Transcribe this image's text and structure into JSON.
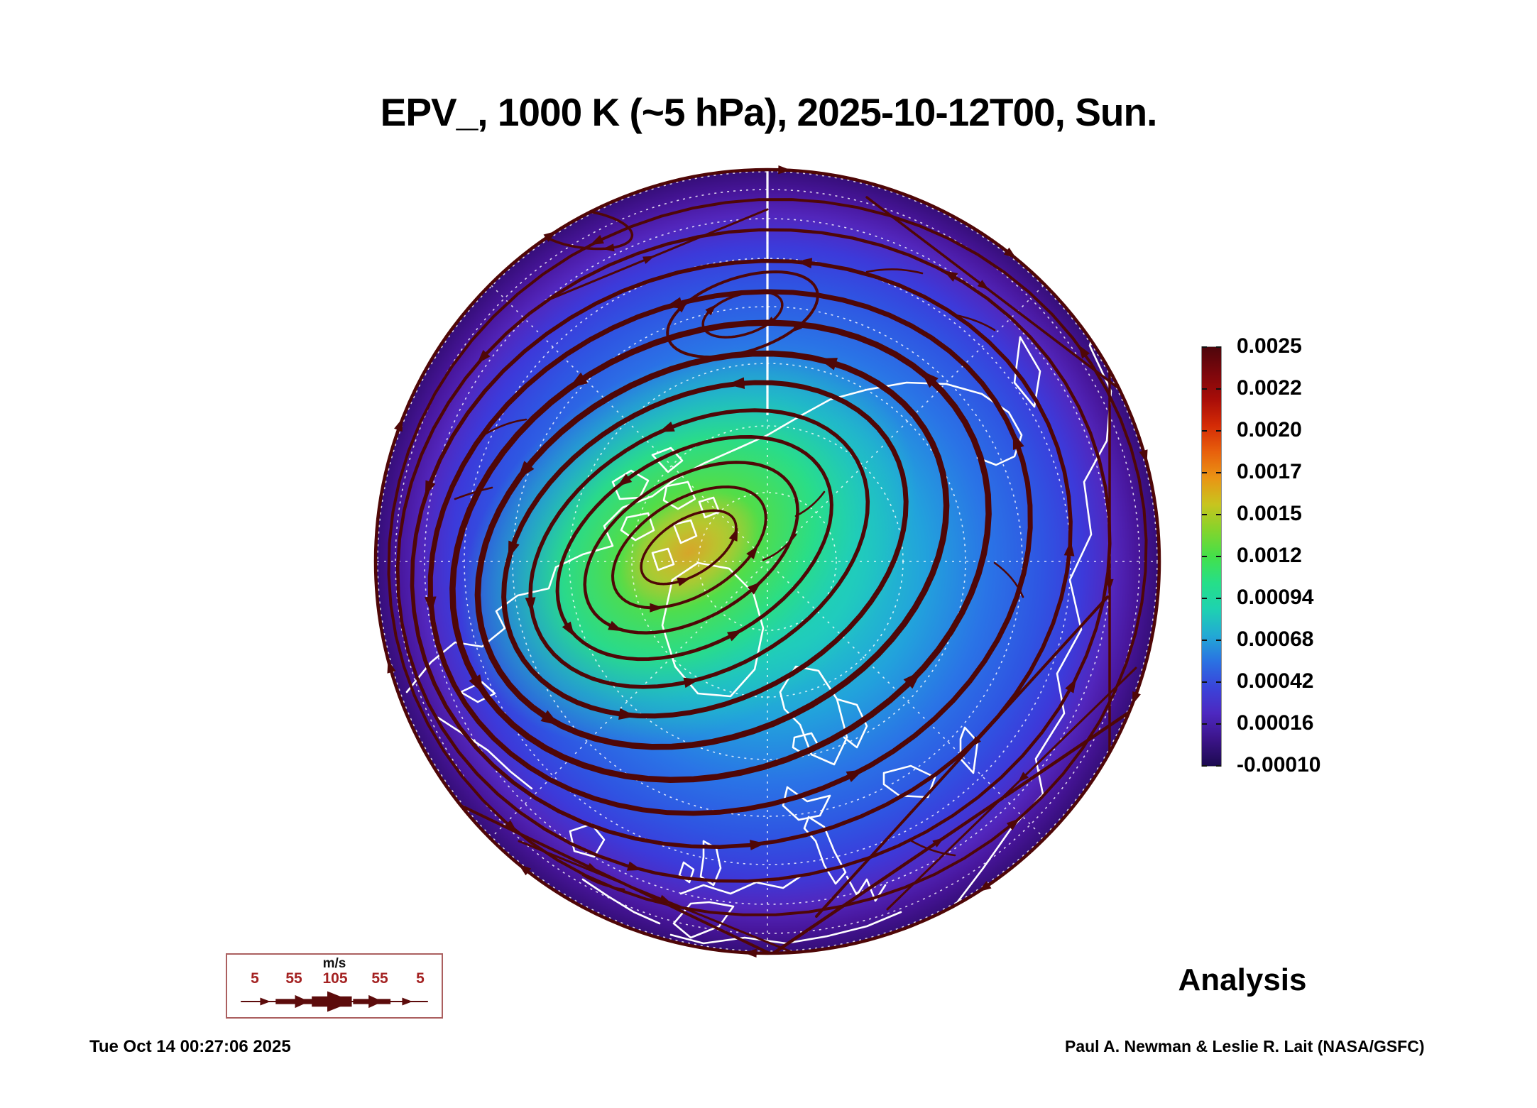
{
  "title": "EPV_, 1000 K (~5 hPa), 2025-10-12T00, Sun.",
  "analysis_label": "Analysis",
  "timestamp": "Tue Oct 14 00:27:06 2025",
  "credit": "Paul A. Newman & Leslie R. Lait (NASA/GSFC)",
  "colorbar": {
    "labels": [
      "0.0025",
      "0.0022",
      "0.0020",
      "0.0017",
      "0.0015",
      "0.0012",
      "0.00094",
      "0.00068",
      "0.00042",
      "0.00016",
      "-0.00010"
    ],
    "gradient_top_to_bottom": [
      "#4e060c",
      "#7c070c",
      "#a80d08",
      "#d42b06",
      "#e8600c",
      "#ea9414",
      "#c8c41e",
      "#84d42c",
      "#44e04a",
      "#26df88",
      "#1ed2b0",
      "#22aad4",
      "#2a72e2",
      "#3a44da",
      "#4d28c0",
      "#3b1488",
      "#1c0a50"
    ]
  },
  "wind_legend": {
    "unit": "m/s",
    "speeds": [
      "5",
      "55",
      "105",
      "55",
      "5"
    ],
    "arrow_color": "#5c0b0b",
    "value_color": "#a42222",
    "border_color": "#ab5f5f"
  },
  "map_style": {
    "streamline_color": "#4f0707",
    "coastline_color": "#ffffff",
    "graticule_color": "#ffffff",
    "base_stops": [
      [
        "0%",
        "#2bd89d"
      ],
      [
        "22%",
        "#20c9c2"
      ],
      [
        "40%",
        "#22a2dc"
      ],
      [
        "56%",
        "#2a74e6"
      ],
      [
        "70%",
        "#2f54e2"
      ],
      [
        "80%",
        "#3c3ada"
      ],
      [
        "88%",
        "#5226bc"
      ],
      [
        "94%",
        "#47159a"
      ],
      [
        "100%",
        "#330d74"
      ]
    ],
    "vortex_stops": [
      [
        "0%",
        "#cdb02a",
        "1"
      ],
      [
        "12%",
        "#a6cf30",
        "1"
      ],
      [
        "30%",
        "#52dd48",
        "1"
      ],
      [
        "55%",
        "#2ade85",
        "0.95"
      ],
      [
        "78%",
        "#1fd0b4",
        "0.5"
      ],
      [
        "100%",
        "#1fd0b4",
        "0"
      ]
    ],
    "core_stops": [
      [
        "0%",
        "#d8a32a",
        "0.85"
      ],
      [
        "50%",
        "#c3c22e",
        "0.6"
      ],
      [
        "100%",
        "#c3c22e",
        "0"
      ]
    ]
  },
  "chart_data": {
    "type": "heatmap",
    "projection": "north polar orthographic view",
    "title": "EPV_, 1000 K (~5 hPa), 2025-10-12T00, Sun.",
    "variable": "EPV_",
    "theta_level": "1000 K (~5 hPa)",
    "valid_time": "2025-10-12T00",
    "valid_day": "Sun.",
    "product": "Analysis",
    "colorbar_tick_values": [
      0.0025,
      0.0022,
      0.002,
      0.0017,
      0.0015,
      0.0012,
      0.00094,
      0.00068,
      0.00042,
      0.00016,
      -0.0001
    ],
    "colorbar_range": [
      -0.0001,
      0.0025
    ],
    "wind_legend_speeds_mps": [
      5,
      55,
      105,
      55,
      5
    ],
    "overlays": [
      "wind streamlines",
      "coastlines",
      "latitude/longitude graticule"
    ],
    "field_structure": "Cyclonic polar vortex of high EPV (yellow-green core) displaced toward the Canada/Greenland sector, ringed by a strong jet of tilted closed streamlines; low EPV (blue-purple) toward the rim with an anticyclonic circulation on the Siberian/Pacific side; easterly flow along the outer rim."
  }
}
